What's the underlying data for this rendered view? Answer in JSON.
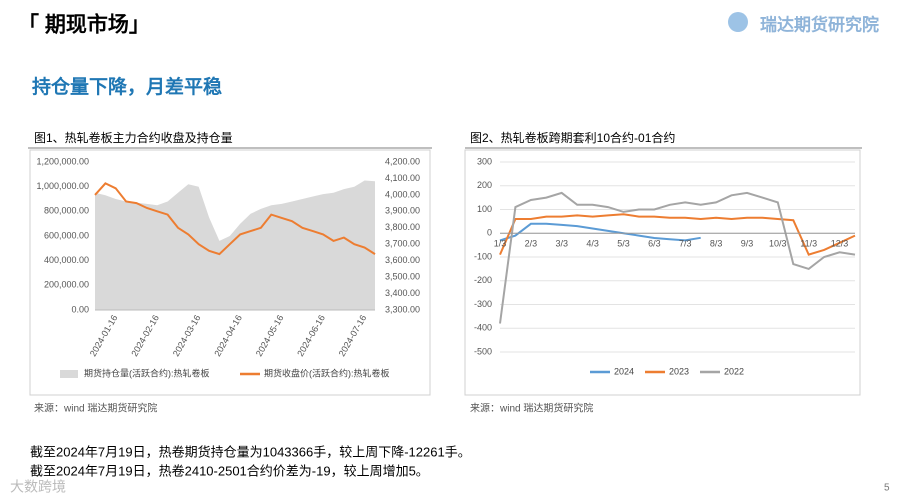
{
  "header": {
    "section": "「 期现市场」",
    "logo": "瑞达期货研究院",
    "subtitle": "持仓量下降，月差平稳",
    "page": "5"
  },
  "chart_data": [
    {
      "type": "combo",
      "title": "图1、热轧卷板主力合约收盘及持仓量",
      "source": "来源：wind   瑞达期货研究院",
      "categories": [
        null,
        null,
        "2024-01-16",
        null,
        null,
        null,
        "2024-02-16",
        null,
        null,
        null,
        "2024-03-16",
        null,
        null,
        null,
        "2024-04-16",
        null,
        null,
        null,
        "2024-05-16",
        null,
        null,
        null,
        "2024-06-16",
        null,
        null,
        null,
        "2024-07-16",
        null
      ],
      "series": [
        {
          "name": "期货持仓量(活跃合约):热轧卷板",
          "kind": "area",
          "color": "#d9d9d9",
          "values": [
            950000,
            930000,
            900000,
            880000,
            870000,
            860000,
            850000,
            880000,
            950000,
            1020000,
            1000000,
            750000,
            560000,
            600000,
            700000,
            780000,
            820000,
            850000,
            860000,
            880000,
            900000,
            920000,
            940000,
            950000,
            980000,
            1000000,
            1050000,
            1043366
          ]
        },
        {
          "name": "期货收盘价(活跃合约):热轧卷板",
          "kind": "line",
          "axis": "y2",
          "color": "#ed7d31",
          "values": [
            4000,
            4070,
            4040,
            3960,
            3950,
            3920,
            3900,
            3880,
            3800,
            3760,
            3700,
            3660,
            3640,
            3700,
            3760,
            3780,
            3800,
            3880,
            3860,
            3840,
            3800,
            3780,
            3760,
            3720,
            3740,
            3700,
            3680,
            3640
          ]
        }
      ],
      "ylim": [
        0,
        1200000
      ],
      "yticks": [
        {
          "value": 0,
          "label": "0.00"
        },
        {
          "value": 200000,
          "label": "200,000.00"
        },
        {
          "value": 400000,
          "label": "400,000.00"
        },
        {
          "value": 600000,
          "label": "600,000.00"
        },
        {
          "value": 800000,
          "label": "800,000.00"
        },
        {
          "value": 1000000,
          "label": "1,000,000.00"
        },
        {
          "value": 1200000,
          "label": "1,200,000.00"
        }
      ],
      "y2lim": [
        3300,
        4200
      ],
      "y2ticks": [
        {
          "value": 3300,
          "label": "3,300.00"
        },
        {
          "value": 3400,
          "label": "3,400.00"
        },
        {
          "value": 3500,
          "label": "3,500.00"
        },
        {
          "value": 3600,
          "label": "3,600.00"
        },
        {
          "value": 3700,
          "label": "3,700.00"
        },
        {
          "value": 3800,
          "label": "3,800.00"
        },
        {
          "value": 3900,
          "label": "3,900.00"
        },
        {
          "value": 4000,
          "label": "4,000.00"
        },
        {
          "value": 4100,
          "label": "4,100.00"
        },
        {
          "value": 4200,
          "label": "4,200.00"
        }
      ]
    },
    {
      "type": "line",
      "title": "图2、热轧卷板跨期套利10合约-01合约",
      "source": "来源：wind   瑞达期货研究院",
      "categories": [
        "1/3",
        null,
        "2/3",
        null,
        "3/3",
        null,
        "4/3",
        null,
        "5/3",
        null,
        "6/3",
        null,
        "7/3",
        null,
        "8/3",
        null,
        "9/3",
        null,
        "10/3",
        null,
        "11/3",
        null,
        "12/3",
        null
      ],
      "series": [
        {
          "name": "2024",
          "color": "#5b9bd5",
          "values": [
            -30,
            -10,
            40,
            40,
            35,
            30,
            20,
            10,
            0,
            -10,
            -20,
            -25,
            -30,
            -19,
            null,
            null,
            null,
            null,
            null,
            null,
            null,
            null,
            null,
            null
          ]
        },
        {
          "name": "2023",
          "color": "#ed7d31",
          "values": [
            -90,
            60,
            60,
            70,
            70,
            75,
            70,
            75,
            80,
            70,
            70,
            65,
            65,
            60,
            65,
            60,
            65,
            65,
            60,
            55,
            -90,
            -70,
            -40,
            -10
          ]
        },
        {
          "name": "2022",
          "color": "#a5a5a5",
          "values": [
            -380,
            110,
            140,
            150,
            170,
            120,
            120,
            110,
            90,
            100,
            100,
            120,
            130,
            120,
            130,
            160,
            170,
            150,
            130,
            -130,
            -150,
            -100,
            -80,
            -90
          ]
        }
      ],
      "ylim": [
        -500,
        300
      ],
      "yticks": [
        -500,
        -400,
        -300,
        -200,
        -100,
        0,
        100,
        200,
        300
      ],
      "grid": true
    }
  ],
  "notes": [
    "截至2024年7月19日，热卷期货持仓量为1043366手，较上周下降-12261手。",
    "截至2024年7月19日，热卷2410-2501合约价差为-19，较上周增加5。"
  ],
  "watermark": "大数跨境"
}
